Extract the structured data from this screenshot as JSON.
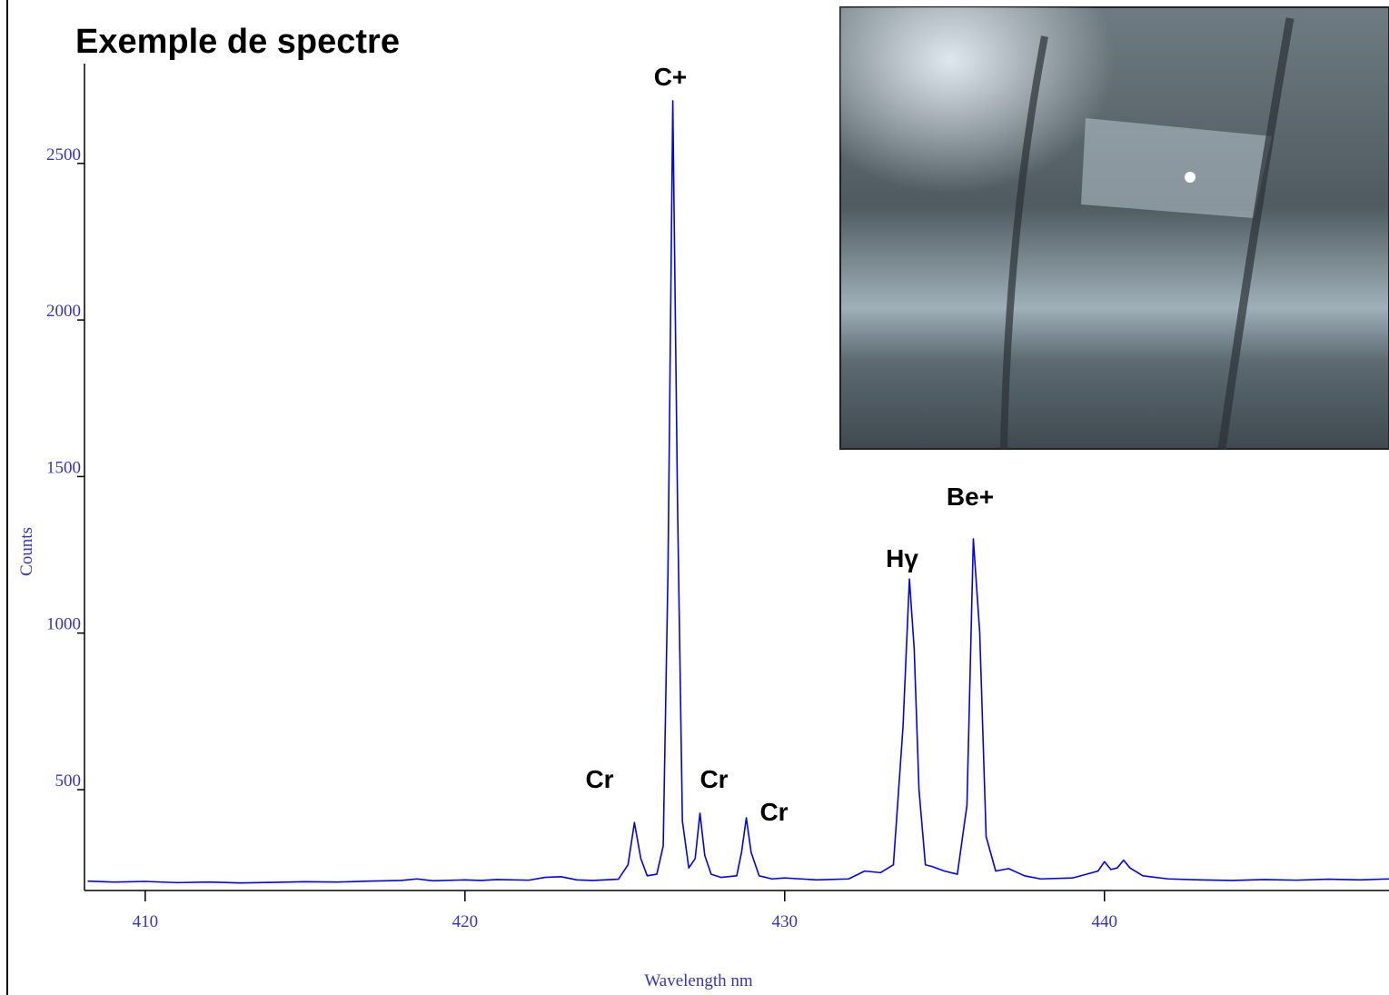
{
  "chart_data": {
    "type": "line",
    "title": "Exemple de spectre",
    "x_label": "Wavelength nm",
    "y_label": "Counts",
    "xlim": [
      408.1,
      448.9
    ],
    "ylim": [
      178,
      2810
    ],
    "xticks": [
      410,
      420,
      430,
      440
    ],
    "yticks": [
      500,
      1000,
      1500,
      2000,
      2500
    ],
    "annotations": [
      "C+",
      "Cr",
      "Cr",
      "Cr",
      "Hγ",
      "Be+"
    ],
    "series": [
      {
        "color": "#0000ff",
        "x": [
          408.2,
          409,
          410,
          411,
          412,
          413,
          414,
          415,
          416,
          417,
          418,
          418.5,
          419,
          420,
          420.5,
          421,
          422,
          422.5,
          423,
          423.5,
          424,
          424.8,
          425.1,
          425.3,
          425.5,
          425.7,
          426.0,
          426.2,
          426.35,
          426.5,
          426.65,
          426.8,
          427.0,
          427.2,
          427.35,
          427.5,
          427.7,
          428.0,
          428.5,
          428.65,
          428.8,
          428.95,
          429.2,
          429.6,
          430,
          431,
          432,
          432.5,
          433,
          433.4,
          433.7,
          433.9,
          434.05,
          434.2,
          434.4,
          434.6,
          435,
          435.4,
          435.7,
          435.9,
          436.1,
          436.3,
          436.6,
          437,
          437.5,
          438,
          439,
          439.8,
          440.0,
          440.2,
          440.4,
          440.6,
          440.8,
          441.2,
          442,
          443,
          444,
          445,
          446,
          447,
          448,
          448.9
        ],
        "values": [
          208,
          205,
          207,
          203,
          205,
          202,
          204,
          206,
          205,
          208,
          210,
          215,
          209,
          212,
          210,
          213,
          211,
          220,
          222,
          212,
          210,
          214,
          260,
          395,
          280,
          225,
          230,
          320,
          1200,
          2700,
          1400,
          400,
          250,
          280,
          425,
          290,
          230,
          220,
          225,
          300,
          410,
          300,
          225,
          215,
          218,
          212,
          215,
          240,
          235,
          260,
          700,
          1173,
          950,
          500,
          260,
          255,
          240,
          230,
          450,
          1301,
          1000,
          350,
          240,
          248,
          225,
          215,
          218,
          240,
          270,
          245,
          250,
          275,
          250,
          225,
          215,
          212,
          210,
          213,
          211,
          214,
          212,
          215
        ]
      }
    ]
  }
}
